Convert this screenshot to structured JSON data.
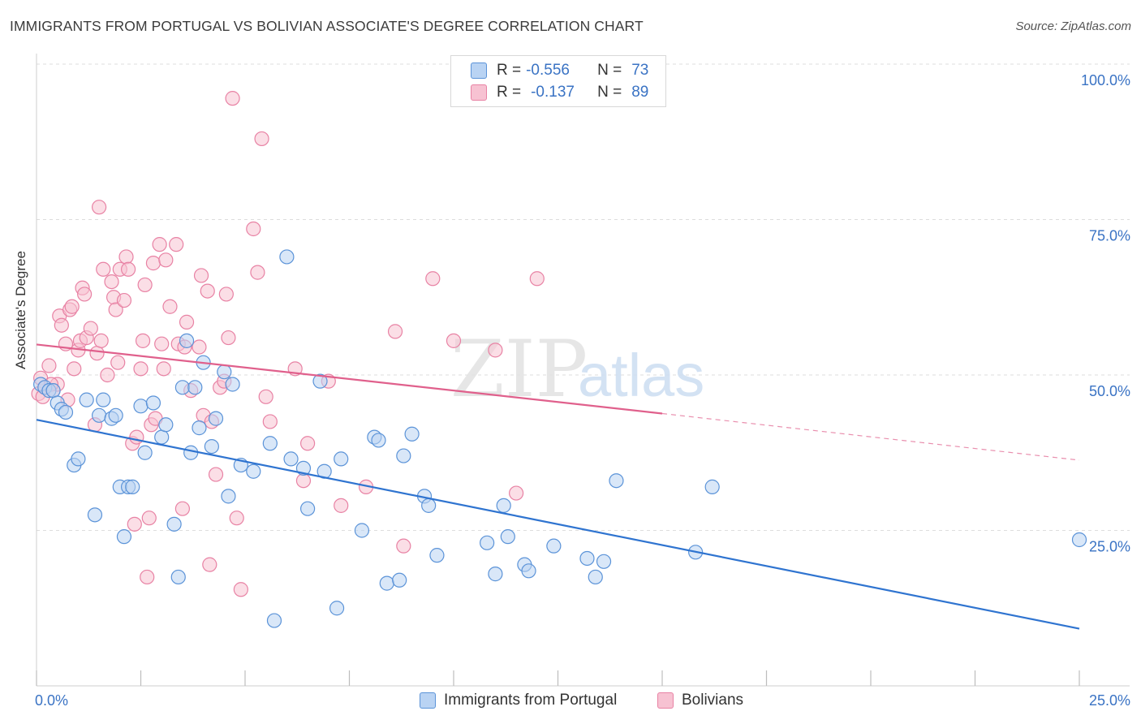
{
  "header": {
    "title": "IMMIGRANTS FROM PORTUGAL VS BOLIVIAN ASSOCIATE'S DEGREE CORRELATION CHART",
    "source": "Source: ZipAtlas.com"
  },
  "watermark": {
    "zip": "ZIP",
    "atlas": "atlas"
  },
  "legend": {
    "rows": [
      {
        "r_label": "R =",
        "r_value": "-0.556",
        "n_label": "N =",
        "n_value": "73"
      },
      {
        "r_label": "R =",
        "r_value": "-0.137",
        "n_label": "N =",
        "n_value": "89"
      }
    ]
  },
  "bottom_legend": [
    "Immigrants from Portugal",
    "Bolivians"
  ],
  "colors": {
    "blue_fill": "#b9d3f3",
    "blue_stroke": "#5b93d8",
    "blue_line": "#2f74d0",
    "pink_fill": "#f7c2d2",
    "pink_stroke": "#e882a4",
    "pink_line": "#e0608c",
    "tick_text": "#3a73c4"
  },
  "chart_data": {
    "type": "scatter",
    "title": "IMMIGRANTS FROM PORTUGAL VS BOLIVIAN ASSOCIATE'S DEGREE CORRELATION CHART",
    "xlabel": "",
    "ylabel": "Associate's Degree",
    "xlim": [
      0,
      25
    ],
    "ylim": [
      0,
      100
    ],
    "x_tick_labels": [
      "0.0%",
      "25.0%"
    ],
    "y_tick_labels": [
      "25.0%",
      "50.0%",
      "75.0%",
      "100.0%"
    ],
    "y_ticks": [
      25,
      50,
      75,
      100
    ],
    "grid": true,
    "legend_position": "top-center",
    "series": [
      {
        "name": "Immigrants from Portugal",
        "r": -0.556,
        "n": 73,
        "trend": {
          "x": [
            0,
            25
          ],
          "y": [
            42.8,
            9.2
          ]
        },
        "points": [
          [
            0.1,
            48.5
          ],
          [
            0.2,
            48.0
          ],
          [
            0.3,
            47.5
          ],
          [
            0.4,
            47.5
          ],
          [
            0.5,
            45.5
          ],
          [
            0.6,
            44.5
          ],
          [
            0.7,
            44.0
          ],
          [
            0.9,
            35.5
          ],
          [
            1.0,
            36.5
          ],
          [
            1.2,
            46.0
          ],
          [
            1.4,
            27.5
          ],
          [
            1.5,
            43.5
          ],
          [
            1.6,
            46.0
          ],
          [
            1.8,
            43.0
          ],
          [
            1.9,
            43.5
          ],
          [
            2.0,
            32.0
          ],
          [
            2.1,
            24.0
          ],
          [
            2.2,
            32.0
          ],
          [
            2.3,
            32.0
          ],
          [
            2.5,
            45.0
          ],
          [
            2.6,
            37.5
          ],
          [
            2.8,
            45.5
          ],
          [
            3.0,
            40.0
          ],
          [
            3.1,
            42.0
          ],
          [
            3.3,
            26.0
          ],
          [
            3.4,
            17.5
          ],
          [
            3.5,
            48.0
          ],
          [
            3.6,
            55.5
          ],
          [
            3.7,
            37.5
          ],
          [
            3.8,
            48.0
          ],
          [
            3.9,
            41.5
          ],
          [
            4.0,
            52.0
          ],
          [
            4.2,
            38.5
          ],
          [
            4.3,
            43.0
          ],
          [
            4.5,
            50.5
          ],
          [
            4.6,
            30.5
          ],
          [
            4.7,
            48.5
          ],
          [
            4.9,
            35.5
          ],
          [
            5.2,
            34.5
          ],
          [
            5.6,
            39.0
          ],
          [
            5.7,
            10.5
          ],
          [
            6.0,
            69.0
          ],
          [
            6.1,
            36.5
          ],
          [
            6.4,
            35.0
          ],
          [
            6.5,
            28.5
          ],
          [
            6.8,
            49.0
          ],
          [
            6.9,
            34.5
          ],
          [
            7.2,
            12.5
          ],
          [
            7.3,
            36.5
          ],
          [
            7.8,
            25.0
          ],
          [
            8.1,
            40.0
          ],
          [
            8.2,
            39.5
          ],
          [
            8.4,
            16.5
          ],
          [
            8.7,
            17.0
          ],
          [
            8.8,
            37.0
          ],
          [
            9.0,
            40.5
          ],
          [
            9.3,
            30.5
          ],
          [
            9.4,
            29.0
          ],
          [
            9.6,
            21.0
          ],
          [
            10.8,
            23.0
          ],
          [
            11.0,
            18.0
          ],
          [
            11.2,
            29.0
          ],
          [
            11.3,
            24.0
          ],
          [
            11.7,
            19.5
          ],
          [
            11.8,
            18.5
          ],
          [
            12.4,
            22.5
          ],
          [
            13.2,
            20.5
          ],
          [
            13.4,
            17.5
          ],
          [
            13.6,
            20.0
          ],
          [
            13.9,
            33.0
          ],
          [
            15.8,
            21.5
          ],
          [
            16.2,
            32.0
          ],
          [
            25.0,
            23.5
          ]
        ]
      },
      {
        "name": "Bolivians",
        "r": -0.137,
        "n": 89,
        "trend": {
          "x": [
            0,
            15
          ],
          "y": [
            54.9,
            43.8
          ]
        },
        "trend_dashed": {
          "x": [
            15,
            25
          ],
          "y": [
            43.8,
            36.3
          ]
        },
        "points": [
          [
            0.05,
            47.0
          ],
          [
            0.1,
            49.5
          ],
          [
            0.2,
            48.0
          ],
          [
            0.3,
            51.5
          ],
          [
            0.4,
            47.5
          ],
          [
            0.5,
            48.5
          ],
          [
            0.55,
            59.5
          ],
          [
            0.6,
            58.0
          ],
          [
            0.7,
            55.0
          ],
          [
            0.75,
            46.0
          ],
          [
            0.8,
            60.5
          ],
          [
            0.85,
            61.0
          ],
          [
            0.9,
            51.0
          ],
          [
            1.0,
            54.0
          ],
          [
            1.05,
            55.5
          ],
          [
            1.1,
            64.0
          ],
          [
            1.15,
            63.0
          ],
          [
            1.2,
            56.0
          ],
          [
            1.3,
            57.5
          ],
          [
            1.4,
            42.0
          ],
          [
            1.45,
            53.5
          ],
          [
            1.5,
            77.0
          ],
          [
            1.55,
            55.5
          ],
          [
            1.6,
            67.0
          ],
          [
            1.7,
            50.0
          ],
          [
            1.8,
            65.0
          ],
          [
            1.85,
            62.5
          ],
          [
            1.9,
            60.5
          ],
          [
            1.95,
            52.0
          ],
          [
            2.0,
            67.0
          ],
          [
            2.1,
            62.0
          ],
          [
            2.15,
            69.0
          ],
          [
            2.2,
            67.0
          ],
          [
            2.3,
            39.0
          ],
          [
            2.35,
            26.0
          ],
          [
            2.4,
            40.0
          ],
          [
            2.5,
            51.0
          ],
          [
            2.55,
            55.5
          ],
          [
            2.6,
            64.5
          ],
          [
            2.65,
            17.5
          ],
          [
            2.7,
            27.0
          ],
          [
            2.75,
            42.0
          ],
          [
            2.8,
            68.0
          ],
          [
            2.85,
            43.0
          ],
          [
            2.95,
            71.0
          ],
          [
            3.0,
            55.0
          ],
          [
            3.05,
            51.0
          ],
          [
            3.1,
            68.5
          ],
          [
            3.2,
            61.0
          ],
          [
            3.35,
            71.0
          ],
          [
            3.4,
            55.0
          ],
          [
            3.5,
            28.5
          ],
          [
            3.55,
            54.5
          ],
          [
            3.6,
            58.5
          ],
          [
            3.7,
            47.5
          ],
          [
            3.9,
            54.5
          ],
          [
            3.95,
            66.0
          ],
          [
            4.0,
            43.5
          ],
          [
            4.1,
            63.5
          ],
          [
            4.15,
            19.5
          ],
          [
            4.2,
            42.5
          ],
          [
            4.3,
            34.0
          ],
          [
            4.4,
            48.0
          ],
          [
            4.5,
            49.0
          ],
          [
            4.55,
            63.0
          ],
          [
            4.6,
            56.0
          ],
          [
            4.7,
            94.5
          ],
          [
            4.8,
            27.0
          ],
          [
            4.9,
            15.5
          ],
          [
            5.2,
            73.5
          ],
          [
            5.3,
            66.5
          ],
          [
            5.4,
            88.0
          ],
          [
            5.5,
            46.5
          ],
          [
            5.6,
            42.5
          ],
          [
            6.2,
            51.0
          ],
          [
            6.4,
            33.0
          ],
          [
            6.5,
            39.0
          ],
          [
            7.0,
            49.0
          ],
          [
            7.3,
            29.0
          ],
          [
            7.9,
            32.0
          ],
          [
            8.6,
            57.0
          ],
          [
            8.8,
            22.5
          ],
          [
            9.5,
            65.5
          ],
          [
            10.0,
            55.5
          ],
          [
            11.0,
            54.0
          ],
          [
            11.5,
            31.0
          ],
          [
            12.0,
            65.5
          ],
          [
            0.15,
            46.5
          ],
          [
            0.35,
            48.5
          ]
        ]
      }
    ]
  }
}
